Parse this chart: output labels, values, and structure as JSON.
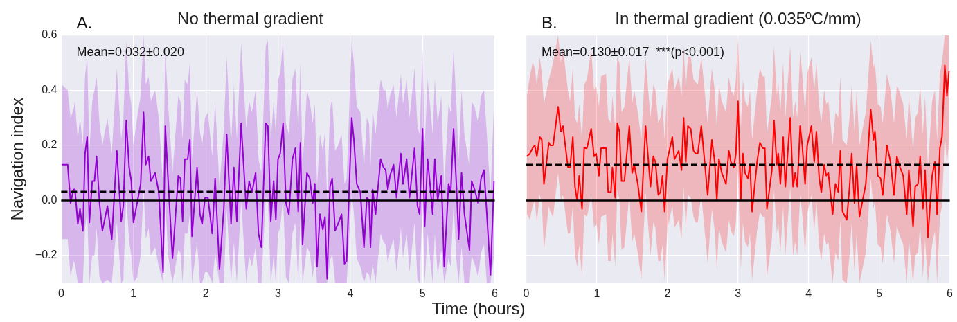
{
  "chart_data": [
    {
      "type": "line",
      "title": "No thermal gradient",
      "xlabel": "Time (hours)",
      "ylabel": "Navigation index",
      "annotations": [
        "A.",
        "Mean=0.032±0.020"
      ],
      "xlim": [
        0,
        6
      ],
      "xticks": [
        0,
        1,
        2,
        3,
        4,
        5,
        6
      ],
      "ylim": [
        -0.3,
        0.6
      ],
      "yticks": [
        {
          "value": -0.2,
          "label": "−0.2"
        },
        {
          "value": 0,
          "label": "0.0"
        },
        {
          "value": 0.2,
          "label": "0.2"
        },
        {
          "value": 0.4,
          "label": "0.4"
        },
        {
          "value": 0.6,
          "label": "0.6"
        }
      ],
      "grid": true,
      "legend": false,
      "marker": "none",
      "line_style": "solid",
      "ref_lines": [
        {
          "axis": "y",
          "value": 0,
          "color": "#000000",
          "line_style": "solid"
        },
        {
          "axis": "y",
          "value": 0.032,
          "color": "#000000",
          "line_style": "dashed"
        }
      ],
      "series": [
        {
          "color": "#9400d3",
          "x": [
            0.01,
            0.09,
            0.13,
            0.17,
            0.19,
            0.23,
            0.26,
            0.3,
            0.33,
            0.36,
            0.39,
            0.43,
            0.46,
            0.49,
            0.53,
            0.57,
            0.64,
            0.7,
            0.77,
            0.83,
            0.86,
            0.9,
            0.94,
            0.97,
            1.0,
            1.05,
            1.1,
            1.14,
            1.17,
            1.21,
            1.24,
            1.3,
            1.35,
            1.41,
            1.44,
            1.48,
            1.54,
            1.62,
            1.65,
            1.68,
            1.71,
            1.75,
            1.78,
            1.81,
            1.88,
            1.92,
            1.95,
            1.99,
            2.03,
            2.09,
            2.13,
            2.19,
            2.25,
            2.29,
            2.35,
            2.39,
            2.43,
            2.49,
            2.56,
            2.6,
            2.64,
            2.69,
            2.73,
            2.77,
            2.83,
            2.86,
            2.9,
            2.94,
            2.97,
            3.0,
            3.03,
            3.07,
            3.11,
            3.15,
            3.2,
            3.24,
            3.28,
            3.31,
            3.34,
            3.4,
            3.44,
            3.48,
            3.51,
            3.54,
            3.58,
            3.62,
            3.65,
            3.68,
            3.72,
            3.75,
            3.79,
            3.83,
            3.88,
            3.92,
            3.95,
            4.02,
            4.05,
            4.09,
            4.14,
            4.19,
            4.23,
            4.26,
            4.28,
            4.31,
            4.35,
            4.42,
            4.46,
            4.49,
            4.52,
            4.55,
            4.6,
            4.64,
            4.7,
            4.73,
            4.78,
            4.82,
            4.89,
            4.93,
            4.96,
            5.0,
            5.03,
            5.07,
            5.1,
            5.14,
            5.17,
            5.21,
            5.26,
            5.3,
            5.36,
            5.39,
            5.43,
            5.47,
            5.5,
            5.54,
            5.58,
            5.65,
            5.68,
            5.72,
            5.77,
            5.81,
            5.85,
            5.89,
            5.94,
            5.99
          ],
          "values": [
            0.13,
            0.13,
            -0.01,
            0.04,
            0.04,
            -0.085,
            -0.03,
            -0.11,
            0.17,
            0.23,
            -0.08,
            0.07,
            0.07,
            0.16,
            -0.01,
            -0.11,
            -0.02,
            -0.14,
            0.18,
            -0.075,
            -0.02,
            0.29,
            0.12,
            0.07,
            -0.08,
            -0.01,
            0.06,
            0.32,
            0.13,
            0.16,
            0.07,
            0.1,
            0.03,
            -0.26,
            0.27,
            0.07,
            -0.21,
            0.09,
            0.08,
            -0.075,
            0.15,
            0.15,
            0.22,
            -0.13,
            0.12,
            -0.05,
            -0.085,
            0.01,
            0.01,
            -0.12,
            0.08,
            -0.25,
            -0.03,
            0.24,
            -0.085,
            0.12,
            -0.075,
            0.28,
            -0.03,
            0.07,
            0.03,
            0.1,
            -0.12,
            -0.17,
            0.28,
            0.27,
            -0.075,
            0.07,
            -0.07,
            0.15,
            0.17,
            0.28,
            -0.01,
            -0.05,
            0.15,
            0.19,
            -0.04,
            0.21,
            -0.16,
            0.1,
            0.08,
            -0.01,
            0.06,
            -0.24,
            -0.05,
            -0.105,
            -0.06,
            -0.285,
            0.05,
            0.08,
            -0.11,
            -0.085,
            -0.05,
            -0.23,
            -0.22,
            0.3,
            0.22,
            0.06,
            0.03,
            -0.17,
            0.01,
            0.0,
            -0.17,
            0.04,
            -0.05,
            0.15,
            0.12,
            0.11,
            0.04,
            0.09,
            0.13,
            0.01,
            0.17,
            0.06,
            0.15,
            0.01,
            0.19,
            -0.02,
            -0.05,
            0.26,
            -0.095,
            0.15,
            0.07,
            -0.05,
            0.15,
            0.0,
            0.09,
            -0.24,
            0.06,
            0.03,
            0.26,
            0.05,
            -0.14,
            0.1,
            -0.05,
            -0.18,
            0.07,
            0.04,
            -0.01,
            0.08,
            0.11,
            -0.05,
            -0.27,
            0.07
          ],
          "upper": [
            0.42,
            0.4,
            0.3,
            0.33,
            0.36,
            0.22,
            0.3,
            0.2,
            0.45,
            0.52,
            0.18,
            0.36,
            0.4,
            0.45,
            0.28,
            0.2,
            0.3,
            0.17,
            0.48,
            0.22,
            0.3,
            0.58,
            0.4,
            0.35,
            0.2,
            0.3,
            0.38,
            0.6,
            0.42,
            0.45,
            0.36,
            0.4,
            0.3,
            0.05,
            0.55,
            0.35,
            0.1,
            0.38,
            0.36,
            0.22,
            0.44,
            0.42,
            0.5,
            0.15,
            0.4,
            0.25,
            0.2,
            0.3,
            0.32,
            0.16,
            0.36,
            0.05,
            0.26,
            0.52,
            0.2,
            0.42,
            0.22,
            0.57,
            0.26,
            0.36,
            0.32,
            0.4,
            0.15,
            0.1,
            0.56,
            0.58,
            0.22,
            0.36,
            0.24,
            0.44,
            0.46,
            0.58,
            0.28,
            0.24,
            0.44,
            0.48,
            0.25,
            0.5,
            0.12,
            0.4,
            0.36,
            0.28,
            0.35,
            0.05,
            0.24,
            0.18,
            0.25,
            0.0,
            0.33,
            0.37,
            0.18,
            0.2,
            0.24,
            0.06,
            0.08,
            0.58,
            0.5,
            0.34,
            0.32,
            0.12,
            0.3,
            0.28,
            0.12,
            0.33,
            0.24,
            0.44,
            0.4,
            0.4,
            0.33,
            0.38,
            0.42,
            0.3,
            0.46,
            0.35,
            0.44,
            0.3,
            0.48,
            0.27,
            0.24,
            0.55,
            0.2,
            0.44,
            0.36,
            0.24,
            0.44,
            0.28,
            0.38,
            0.05,
            0.35,
            0.32,
            0.55,
            0.34,
            0.15,
            0.4,
            0.24,
            0.12,
            0.36,
            0.34,
            0.28,
            0.38,
            0.4,
            0.24,
            0.02,
            0.36
          ],
          "lower": [
            -0.14,
            -0.14,
            -0.28,
            -0.22,
            -0.23,
            -0.3,
            -0.3,
            -0.3,
            -0.1,
            -0.04,
            -0.3,
            -0.2,
            -0.2,
            -0.1,
            -0.28,
            -0.3,
            -0.29,
            -0.3,
            -0.08,
            -0.3,
            -0.29,
            0.02,
            -0.15,
            -0.2,
            -0.3,
            -0.28,
            -0.2,
            0.05,
            -0.14,
            -0.1,
            -0.2,
            -0.17,
            -0.24,
            -0.3,
            0.0,
            -0.2,
            -0.3,
            -0.18,
            -0.19,
            -0.3,
            -0.12,
            -0.12,
            -0.05,
            -0.3,
            -0.15,
            -0.3,
            -0.3,
            -0.26,
            -0.26,
            -0.3,
            -0.19,
            -0.3,
            -0.3,
            -0.03,
            -0.3,
            -0.15,
            -0.3,
            0.0,
            -0.3,
            -0.2,
            -0.24,
            -0.17,
            -0.3,
            -0.3,
            0.01,
            0.0,
            -0.3,
            -0.2,
            -0.3,
            -0.12,
            -0.1,
            0.01,
            -0.28,
            -0.3,
            -0.12,
            -0.08,
            -0.3,
            -0.06,
            -0.3,
            -0.17,
            -0.19,
            -0.28,
            -0.21,
            -0.3,
            -0.3,
            -0.3,
            -0.3,
            -0.3,
            -0.22,
            -0.19,
            -0.3,
            -0.3,
            -0.3,
            -0.3,
            -0.3,
            0.03,
            -0.05,
            -0.21,
            -0.24,
            -0.3,
            -0.26,
            -0.27,
            -0.3,
            -0.23,
            -0.3,
            -0.12,
            -0.15,
            -0.16,
            -0.23,
            -0.18,
            -0.14,
            -0.26,
            -0.1,
            -0.21,
            -0.12,
            -0.26,
            -0.08,
            -0.29,
            -0.3,
            -0.01,
            -0.3,
            -0.12,
            -0.2,
            -0.3,
            -0.12,
            -0.27,
            -0.18,
            -0.3,
            -0.21,
            -0.24,
            -0.01,
            -0.22,
            -0.3,
            -0.17,
            -0.3,
            -0.3,
            -0.2,
            -0.23,
            -0.28,
            -0.19,
            -0.16,
            -0.3,
            -0.3,
            -0.2
          ]
        }
      ]
    },
    {
      "type": "line",
      "title": "In thermal gradient (0.035ºC/mm)",
      "annotations": [
        "B.",
        "Mean=0.130±0.017  ***(p<0.001)"
      ],
      "xlim": [
        0,
        6
      ],
      "xticks": [
        0,
        1,
        2,
        3,
        4,
        5,
        6
      ],
      "ylim": [
        -0.3,
        0.6
      ],
      "yticks": [
        {
          "value": -0.2,
          "label": null
        },
        {
          "value": 0,
          "label": null
        },
        {
          "value": 0.2,
          "label": null
        },
        {
          "value": 0.4,
          "label": null
        },
        {
          "value": 0.6,
          "label": null
        }
      ],
      "tick_labels": "x",
      "grid": true,
      "legend": false,
      "marker": "none",
      "line_style": "solid",
      "ref_lines": [
        {
          "axis": "y",
          "value": 0,
          "color": "#000000",
          "line_style": "solid"
        },
        {
          "axis": "y",
          "value": 0.13,
          "color": "#000000",
          "line_style": "dashed"
        }
      ],
      "series": [
        {
          "color": "#ff0000",
          "x": [
            0.01,
            0.05,
            0.09,
            0.12,
            0.15,
            0.19,
            0.22,
            0.25,
            0.32,
            0.34,
            0.38,
            0.45,
            0.49,
            0.52,
            0.59,
            0.62,
            0.66,
            0.69,
            0.72,
            0.75,
            0.79,
            0.82,
            0.86,
            0.92,
            0.96,
            0.99,
            1.03,
            1.06,
            1.13,
            1.16,
            1.2,
            1.22,
            1.26,
            1.29,
            1.32,
            1.35,
            1.39,
            1.46,
            1.5,
            1.53,
            1.58,
            1.63,
            1.69,
            1.76,
            1.8,
            1.83,
            1.87,
            1.9,
            1.93,
            1.96,
            2.0,
            2.07,
            2.1,
            2.16,
            2.2,
            2.23,
            2.26,
            2.29,
            2.33,
            2.37,
            2.4,
            2.43,
            2.48,
            2.52,
            2.57,
            2.63,
            2.67,
            2.7,
            2.73,
            2.77,
            2.83,
            2.87,
            2.9,
            2.94,
            2.97,
            3.0,
            3.04,
            3.07,
            3.1,
            3.14,
            3.17,
            3.2,
            3.27,
            3.31,
            3.35,
            3.38,
            3.41,
            3.48,
            3.51,
            3.55,
            3.57,
            3.6,
            3.64,
            3.67,
            3.74,
            3.78,
            3.81,
            3.84,
            3.88,
            3.91,
            3.95,
            3.98,
            4.04,
            4.08,
            4.11,
            4.15,
            4.18,
            4.22,
            4.25,
            4.28,
            4.34,
            4.38,
            4.42,
            4.45,
            4.48,
            4.54,
            4.58,
            4.61,
            4.65,
            4.68,
            4.72,
            4.81,
            4.88,
            4.92,
            4.94,
            4.98,
            5.02,
            5.05,
            5.11,
            5.16,
            5.21,
            5.25,
            5.28,
            5.34,
            5.39,
            5.42,
            5.48,
            5.51,
            5.55,
            5.58,
            5.62,
            5.65,
            5.69,
            5.75,
            5.79,
            5.82,
            5.86,
            5.89,
            5.93,
            5.96,
            5.99
          ],
          "values": [
            0.16,
            0.17,
            0.19,
            0.2,
            0.16,
            0.23,
            0.22,
            0.06,
            0.21,
            0.2,
            0.2,
            0.34,
            0.25,
            0.27,
            0.12,
            0.12,
            0.23,
            0.05,
            0.0,
            0.09,
            -0.03,
            0.19,
            0.19,
            0.26,
            0.16,
            0.17,
            0.09,
            0.19,
            0.19,
            0.03,
            0.03,
            0.12,
            0.01,
            0.28,
            0.25,
            0.07,
            0.07,
            0.27,
            0.1,
            0.13,
            0.06,
            -0.04,
            0.27,
            0.05,
            0.16,
            0.14,
            0.02,
            0.03,
            0.09,
            -0.04,
            0.15,
            0.23,
            0.15,
            0.18,
            0.11,
            0.3,
            0.14,
            0.27,
            0.26,
            0.18,
            0.17,
            0.17,
            0.27,
            0.16,
            0.02,
            0.22,
            0.14,
            0.0,
            0.15,
            0.1,
            0.06,
            0.18,
            0.14,
            0.12,
            0.17,
            0.36,
            0.0,
            0.17,
            0.1,
            0.08,
            0.13,
            -0.04,
            0.14,
            0.21,
            0.19,
            0.19,
            -0.03,
            0.11,
            0.29,
            0.13,
            0.17,
            0.06,
            0.23,
            0.05,
            0.3,
            0.05,
            0.1,
            0.05,
            0.27,
            0.2,
            0.06,
            0.2,
            0.27,
            0.14,
            0.25,
            0.08,
            0.03,
            0.13,
            0.09,
            0.1,
            -0.05,
            0.06,
            0.03,
            0.18,
            -0.04,
            -0.07,
            0.05,
            0.17,
            -0.01,
            0.13,
            -0.06,
            0.06,
            0.33,
            0.22,
            0.25,
            0.09,
            0.08,
            0.02,
            0.2,
            0.14,
            0.02,
            0.16,
            0.13,
            0.09,
            -0.05,
            0.11,
            -0.095,
            0.05,
            0.06,
            0.16,
            -0.03,
            0.11,
            -0.135,
            0.09,
            0.14,
            -0.05,
            0.19,
            0.23,
            0.49,
            0.38,
            0.47
          ],
          "upper": [
            0.38,
            0.45,
            0.5,
            0.48,
            0.42,
            0.52,
            0.46,
            0.35,
            0.44,
            0.46,
            0.5,
            0.6,
            0.5,
            0.55,
            0.4,
            0.36,
            0.48,
            0.3,
            0.28,
            0.35,
            0.22,
            0.42,
            0.44,
            0.55,
            0.4,
            0.42,
            0.34,
            0.45,
            0.46,
            0.3,
            0.28,
            0.38,
            0.26,
            0.52,
            0.5,
            0.32,
            0.34,
            0.52,
            0.35,
            0.4,
            0.32,
            0.22,
            0.52,
            0.3,
            0.42,
            0.4,
            0.28,
            0.3,
            0.35,
            0.22,
            0.42,
            0.48,
            0.4,
            0.45,
            0.38,
            0.56,
            0.4,
            0.52,
            0.52,
            0.44,
            0.43,
            0.42,
            0.52,
            0.42,
            0.28,
            0.48,
            0.4,
            0.26,
            0.42,
            0.36,
            0.32,
            0.45,
            0.4,
            0.38,
            0.44,
            0.6,
            0.26,
            0.44,
            0.36,
            0.34,
            0.4,
            0.22,
            0.4,
            0.48,
            0.45,
            0.45,
            0.24,
            0.38,
            0.56,
            0.38,
            0.43,
            0.32,
            0.5,
            0.3,
            0.56,
            0.3,
            0.36,
            0.3,
            0.54,
            0.46,
            0.32,
            0.46,
            0.52,
            0.4,
            0.5,
            0.34,
            0.28,
            0.4,
            0.35,
            0.36,
            0.2,
            0.32,
            0.3,
            0.45,
            0.22,
            0.2,
            0.3,
            0.42,
            0.25,
            0.4,
            0.2,
            0.32,
            0.58,
            0.48,
            0.5,
            0.35,
            0.34,
            0.28,
            0.46,
            0.4,
            0.28,
            0.42,
            0.4,
            0.35,
            0.22,
            0.38,
            0.18,
            0.3,
            0.32,
            0.42,
            0.24,
            0.38,
            0.12,
            0.36,
            0.4,
            0.22,
            0.46,
            0.5,
            0.6,
            0.6,
            0.6
          ],
          "lower": [
            -0.05,
            -0.07,
            -0.02,
            0.0,
            -0.08,
            0.02,
            -0.01,
            -0.18,
            -0.02,
            -0.04,
            -0.06,
            0.1,
            0.0,
            0.02,
            -0.12,
            -0.12,
            -0.02,
            -0.2,
            -0.24,
            -0.16,
            -0.28,
            -0.05,
            -0.06,
            0.02,
            -0.1,
            -0.08,
            -0.16,
            -0.06,
            -0.05,
            -0.22,
            -0.22,
            -0.12,
            -0.24,
            0.04,
            0.0,
            -0.18,
            -0.17,
            0.02,
            -0.15,
            -0.12,
            -0.19,
            -0.29,
            0.03,
            -0.2,
            -0.08,
            -0.1,
            -0.22,
            -0.22,
            -0.16,
            -0.29,
            -0.1,
            -0.02,
            -0.1,
            -0.07,
            -0.14,
            0.05,
            -0.1,
            0.02,
            0.01,
            -0.06,
            -0.08,
            -0.08,
            0.02,
            -0.09,
            -0.23,
            -0.03,
            -0.11,
            -0.25,
            -0.1,
            -0.15,
            -0.19,
            -0.07,
            -0.11,
            -0.13,
            -0.08,
            0.11,
            -0.25,
            -0.08,
            -0.15,
            -0.17,
            -0.12,
            -0.29,
            -0.11,
            -0.04,
            -0.06,
            -0.06,
            -0.28,
            -0.14,
            0.04,
            -0.12,
            -0.08,
            -0.19,
            -0.02,
            -0.2,
            0.05,
            -0.2,
            -0.15,
            -0.2,
            0.02,
            -0.05,
            -0.19,
            -0.05,
            0.02,
            -0.11,
            0.0,
            -0.17,
            -0.22,
            -0.12,
            -0.16,
            -0.15,
            -0.3,
            -0.19,
            -0.22,
            -0.07,
            -0.29,
            -0.3,
            -0.2,
            -0.08,
            -0.26,
            -0.12,
            -0.3,
            -0.19,
            0.08,
            -0.03,
            0.0,
            -0.16,
            -0.17,
            -0.23,
            -0.05,
            -0.11,
            -0.23,
            -0.09,
            -0.12,
            -0.16,
            -0.3,
            -0.14,
            -0.3,
            -0.2,
            -0.19,
            -0.09,
            -0.28,
            -0.14,
            -0.3,
            -0.16,
            -0.11,
            -0.3,
            -0.06,
            -0.02,
            0.24,
            0.13,
            0.22
          ]
        }
      ]
    }
  ]
}
